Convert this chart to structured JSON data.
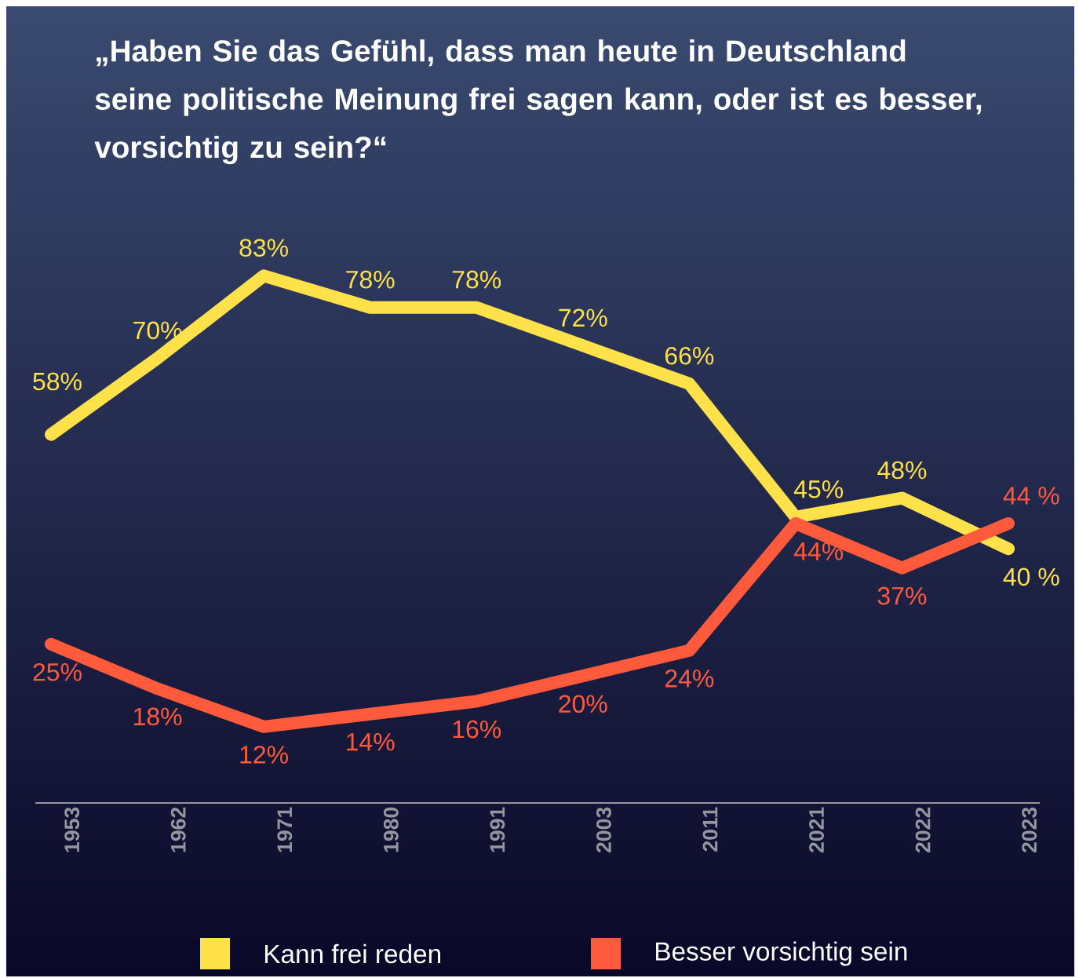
{
  "chart_data": {
    "type": "line",
    "title": "„Haben Sie das Gefühl, dass man heute in Deutschland seine politische Meinung frei sagen kann, oder ist es besser, vorsichtig zu sein?“",
    "categories": [
      "1953",
      "1962",
      "1971",
      "1980",
      "1991",
      "2003",
      "2011",
      "2021",
      "2022",
      "2023"
    ],
    "series": [
      {
        "name": "Kann frei reden",
        "color": "#ffe14a",
        "values": [
          58,
          70,
          83,
          78,
          78,
          72,
          66,
          45,
          48,
          40
        ],
        "value_labels": [
          "58%",
          "70%",
          "83%",
          "78%",
          "78%",
          "72%",
          "66%",
          "45%",
          "48%",
          "40 %"
        ]
      },
      {
        "name": "Besser vorsichtig sein",
        "color": "#ff5a3c",
        "values": [
          25,
          18,
          12,
          14,
          16,
          20,
          24,
          44,
          37,
          44
        ],
        "value_labels": [
          "25%",
          "18%",
          "12%",
          "14%",
          "16%",
          "20%",
          "24%",
          "44%",
          "37%",
          "44 %"
        ]
      }
    ],
    "legend": "bottom"
  }
}
